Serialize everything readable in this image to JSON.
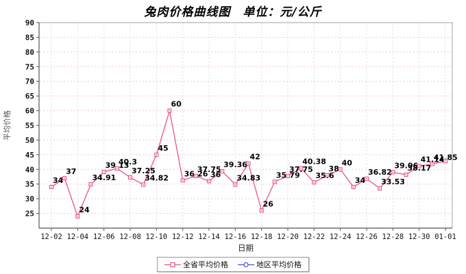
{
  "page_title": "兔肉价格曲线图　单位：元/公斤",
  "chart_data": {
    "type": "line",
    "title": "兔肉价格曲线图",
    "unit_label": "单位：元/公斤",
    "full_title": "兔肉价格曲线图　单位：元/公斤",
    "xlabel": "日期",
    "ylabel": "平均价格",
    "ylim": [
      20,
      90
    ],
    "yticks": [
      25,
      30,
      35,
      40,
      45,
      50,
      55,
      60,
      65,
      70,
      75,
      80,
      85,
      90
    ],
    "grid": true,
    "legend_position": "bottom",
    "x": [
      "12-02",
      "12-03",
      "12-04",
      "12-05",
      "12-06",
      "12-07",
      "12-08",
      "12-09",
      "12-10",
      "12-11",
      "12-12",
      "12-13",
      "12-14",
      "12-15",
      "12-16",
      "12-17",
      "12-18",
      "12-19",
      "12-20",
      "12-21",
      "12-22",
      "12-23",
      "12-24",
      "12-25",
      "12-26",
      "12-27",
      "12-28",
      "12-29",
      "12-30",
      "12-31",
      "01-01"
    ],
    "xtick_every": 2,
    "series": [
      {
        "name": "全省平均价格",
        "color": "#e75480",
        "marker": "square",
        "values": [
          34,
          37,
          24,
          34.91,
          39.13,
          40.3,
          37.25,
          34.82,
          45,
          60,
          36.26,
          37.75,
          36,
          39.36,
          34.83,
          42,
          26,
          35.79,
          37.75,
          40.38,
          35.6,
          38,
          40,
          34,
          36.82,
          33.53,
          39.06,
          38.17,
          41.14,
          41.85,
          42.85
        ],
        "point_labels": [
          "34",
          "37",
          "24",
          "34.91",
          "39.13",
          "40.3",
          "37.25",
          "34.82",
          "45",
          "60",
          "36.26",
          "37.75",
          "36",
          "39.36",
          "34.83",
          "42",
          "26",
          "35.79",
          "37.75",
          "40.38",
          "35.6",
          "38",
          "40",
          "34",
          "36.82",
          "33.53",
          "39.06",
          "38.17",
          "41.14",
          "41.85",
          ""
        ]
      },
      {
        "name": "地区平均价格",
        "color": "#4455cc",
        "marker": "circle",
        "values": []
      }
    ],
    "colors": {
      "h_grid": "#f0c6c6",
      "v_grid": "#dcdcdc",
      "plot_border": "#a0a0a0",
      "axis": "#555555",
      "tick_text": "#111111",
      "point_label_text": "#000000"
    }
  }
}
